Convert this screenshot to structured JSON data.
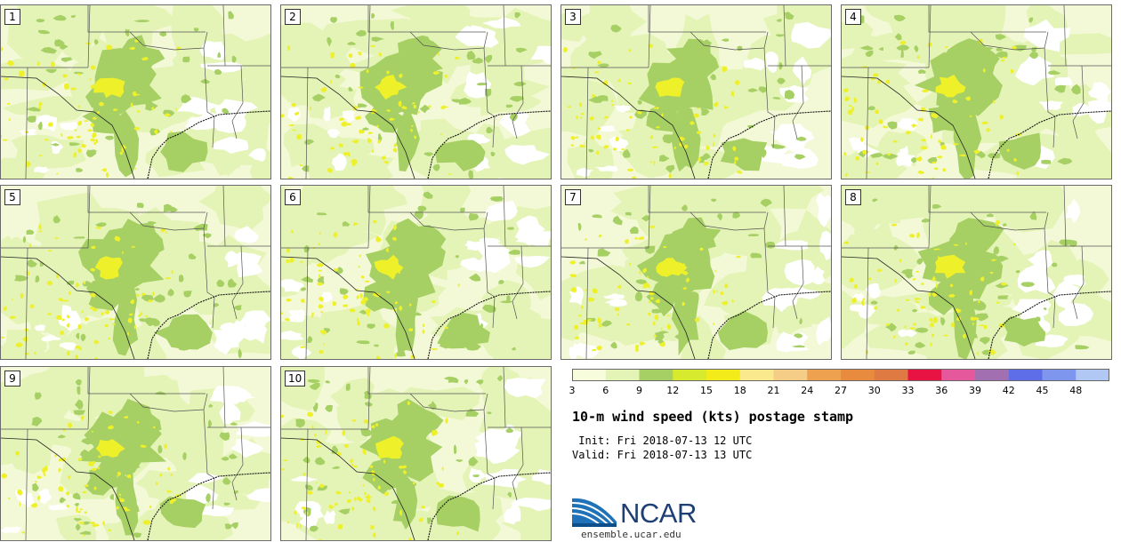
{
  "panels": [
    {
      "label": "1"
    },
    {
      "label": "2"
    },
    {
      "label": "3"
    },
    {
      "label": "4"
    },
    {
      "label": "5"
    },
    {
      "label": "6"
    },
    {
      "label": "7"
    },
    {
      "label": "8"
    },
    {
      "label": "9"
    },
    {
      "label": "10"
    }
  ],
  "legend": {
    "units": "kts",
    "ticks": [
      "3",
      "6",
      "9",
      "12",
      "15",
      "18",
      "21",
      "24",
      "27",
      "30",
      "33",
      "36",
      "39",
      "42",
      "45",
      "48"
    ],
    "colors": [
      "#f7fcdd",
      "#e4f3b6",
      "#a6cf64",
      "#d7ea2d",
      "#f3ec1a",
      "#fbe98e",
      "#f6cd86",
      "#eea24f",
      "#e88b3e",
      "#df7a42",
      "#e81343",
      "#e5599c",
      "#a270b0",
      "#5e6ee8",
      "#7f96ee",
      "#b1c7f4"
    ]
  },
  "title": "10-m wind speed (kts) postage stamp",
  "init_line": " Init: Fri 2018-07-13 12 UTC",
  "valid_line": "Valid: Fri 2018-07-13 13 UTC",
  "logo": {
    "name": "NCAR",
    "url": "ensemble.ucar.edu"
  },
  "map_colors": {
    "light": "#e4f3b6",
    "pale": "#f3f9d6",
    "medium": "#a6cf64",
    "yellow": "#eef02a",
    "border": "#555555",
    "coast": "#111111"
  }
}
